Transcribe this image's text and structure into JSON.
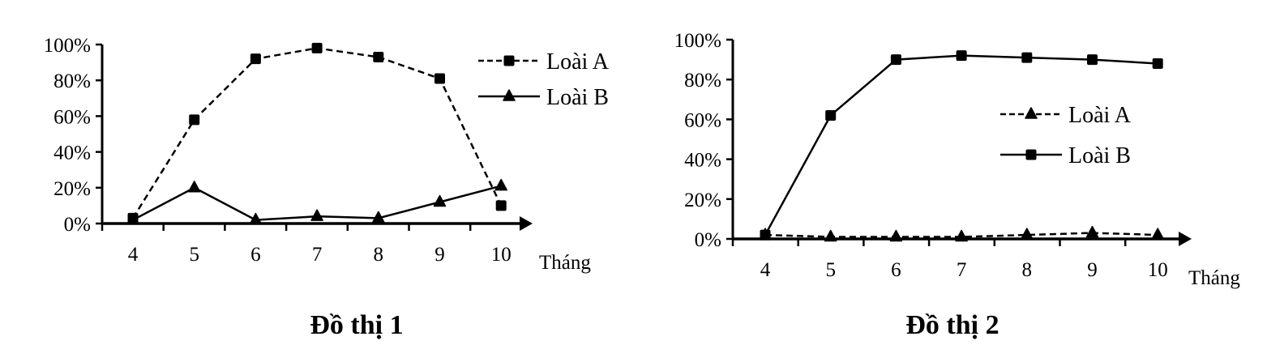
{
  "chart_data": [
    {
      "type": "line",
      "title": "Đồ thị 1",
      "xlabel": "Tháng",
      "ylabel": "",
      "categories": [
        "4",
        "5",
        "6",
        "7",
        "8",
        "9",
        "10"
      ],
      "y_ticks": [
        "0%",
        "20%",
        "40%",
        "60%",
        "80%",
        "100%"
      ],
      "ylim": [
        0,
        100
      ],
      "grid": false,
      "legend_position": "top-right",
      "series": [
        {
          "name": "Loài A",
          "style": "dashed",
          "marker": "square",
          "values": [
            3,
            58,
            92,
            98,
            93,
            81,
            10
          ]
        },
        {
          "name": "Loài B",
          "style": "solid",
          "marker": "triangle",
          "values": [
            2,
            20,
            2,
            4,
            3,
            12,
            21
          ]
        }
      ]
    },
    {
      "type": "line",
      "title": "Đồ thị 2",
      "xlabel": "Tháng",
      "ylabel": "",
      "categories": [
        "4",
        "5",
        "6",
        "7",
        "8",
        "9",
        "10"
      ],
      "y_ticks": [
        "0%",
        "20%",
        "40%",
        "60%",
        "80%",
        "100%"
      ],
      "ylim": [
        0,
        100
      ],
      "grid": false,
      "legend_position": "center-right",
      "series": [
        {
          "name": "Loài A",
          "style": "dashed",
          "marker": "triangle",
          "values": [
            2,
            1,
            1,
            1,
            2,
            3,
            2
          ]
        },
        {
          "name": "Loài B",
          "style": "solid",
          "marker": "square",
          "values": [
            2,
            62,
            90,
            92,
            91,
            90,
            88
          ]
        }
      ]
    }
  ]
}
